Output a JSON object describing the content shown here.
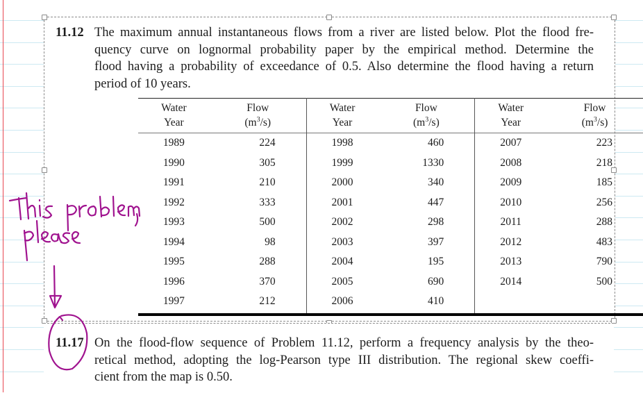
{
  "page": {
    "type": "lined-notebook-page",
    "colors": {
      "margin_line": "#e8464f",
      "ruled_line": "#cde9f2",
      "ink": "#a0138f"
    }
  },
  "problem_11_12": {
    "number": "11.12",
    "lines": [
      "The maximum annual instantaneous flows from a river are listed below. Plot the flood fre-",
      "quency curve on lognormal probability paper by the empirical method. Determine the",
      "flood having a probability of exceedance of 0.5. Also determine the flood having a return",
      "period of 10 years."
    ]
  },
  "table": {
    "headers": {
      "year_line1": "Water",
      "year_line2": "Year",
      "flow_line1": "Flow",
      "flow_line2_pre": "(m",
      "flow_line2_sup": "3",
      "flow_line2_post": "/s)"
    },
    "rows": [
      [
        [
          "1989",
          "224"
        ],
        [
          "1998",
          "460"
        ],
        [
          "2007",
          "223"
        ]
      ],
      [
        [
          "1990",
          "305"
        ],
        [
          "1999",
          "1330"
        ],
        [
          "2008",
          "218"
        ]
      ],
      [
        [
          "1991",
          "210"
        ],
        [
          "2000",
          "340"
        ],
        [
          "2009",
          "185"
        ]
      ],
      [
        [
          "1992",
          "333"
        ],
        [
          "2001",
          "447"
        ],
        [
          "2010",
          "256"
        ]
      ],
      [
        [
          "1993",
          "500"
        ],
        [
          "2002",
          "298"
        ],
        [
          "2011",
          "288"
        ]
      ],
      [
        [
          "1994",
          "98"
        ],
        [
          "2003",
          "397"
        ],
        [
          "2012",
          "483"
        ]
      ],
      [
        [
          "1995",
          "288"
        ],
        [
          "2004",
          "195"
        ],
        [
          "2013",
          "790"
        ]
      ],
      [
        [
          "1996",
          "370"
        ],
        [
          "2005",
          "690"
        ],
        [
          "2014",
          "500"
        ]
      ],
      [
        [
          "1997",
          "212"
        ],
        [
          "2006",
          "410"
        ],
        [
          "",
          ""
        ]
      ]
    ]
  },
  "problem_11_17": {
    "number": "11.17",
    "lines": [
      "On the flood-flow sequence of Problem 11.12, perform a frequency analysis by the theo-",
      "retical method, adopting the log-Pearson type III distribution. The regional skew coeffi-",
      "cient from the map is 0.50."
    ]
  },
  "handwriting": {
    "note_line1": "This problem,",
    "note_line2": "please"
  }
}
